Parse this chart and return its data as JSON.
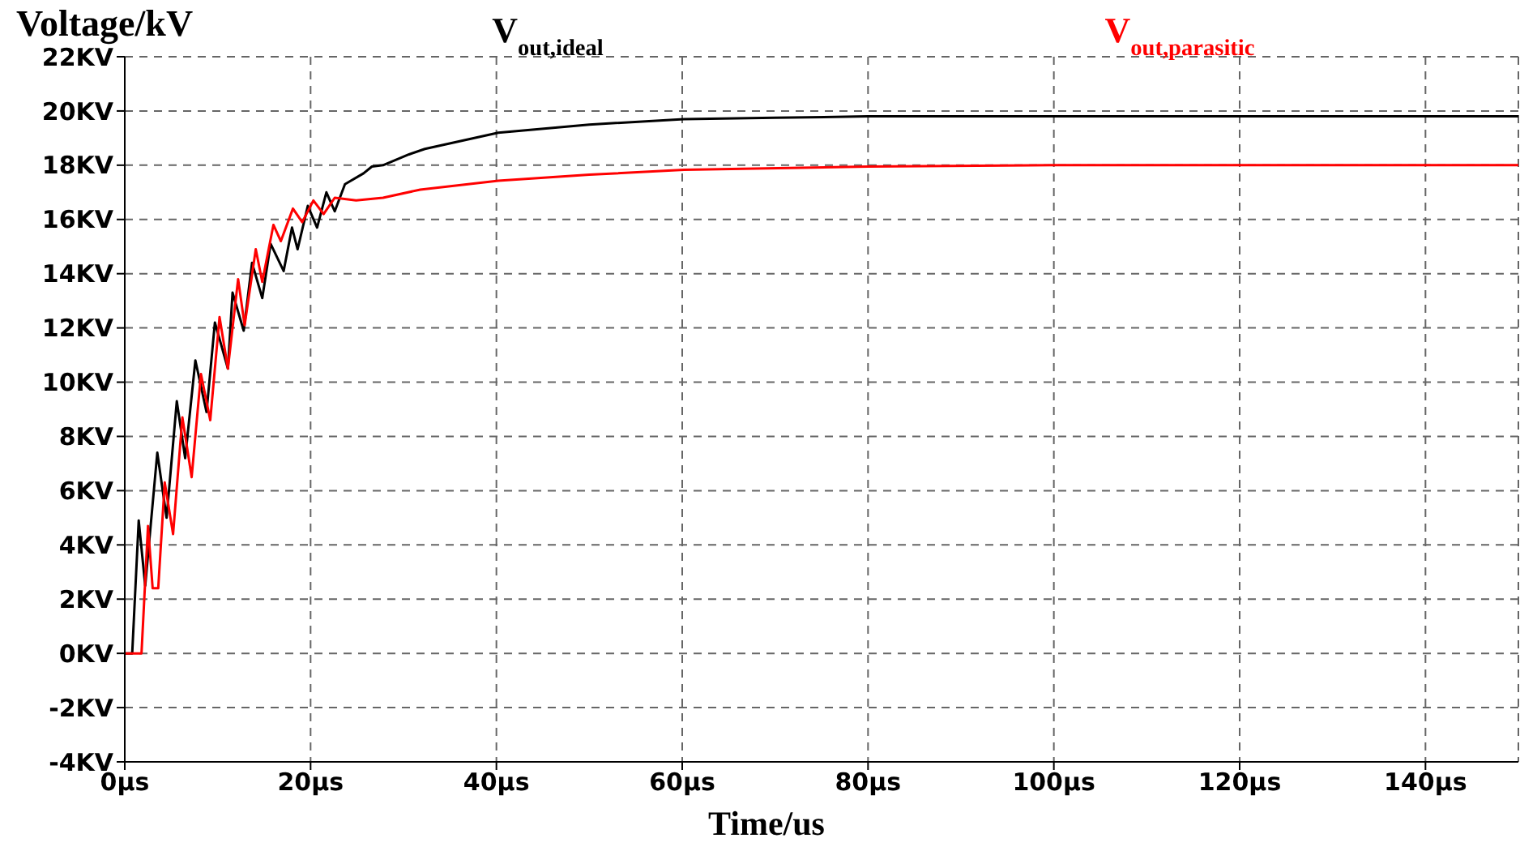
{
  "chart_data": {
    "type": "line",
    "ylabel": "Voltage/kV",
    "xlabel": "Time/us",
    "xlim": [
      0,
      150
    ],
    "ylim": [
      -4,
      22
    ],
    "xticks": [
      {
        "value": 0,
        "label": "0µs"
      },
      {
        "value": 20,
        "label": "20µs"
      },
      {
        "value": 40,
        "label": "40µs"
      },
      {
        "value": 60,
        "label": "60µs"
      },
      {
        "value": 80,
        "label": "80µs"
      },
      {
        "value": 100,
        "label": "100µs"
      },
      {
        "value": 120,
        "label": "120µs"
      },
      {
        "value": 140,
        "label": "140µs"
      }
    ],
    "yticks": [
      {
        "value": -4,
        "label": "-4KV"
      },
      {
        "value": -2,
        "label": "-2KV"
      },
      {
        "value": 0,
        "label": "0KV"
      },
      {
        "value": 2,
        "label": "2KV"
      },
      {
        "value": 4,
        "label": "4KV"
      },
      {
        "value": 6,
        "label": "6KV"
      },
      {
        "value": 8,
        "label": "8KV"
      },
      {
        "value": 10,
        "label": "10KV"
      },
      {
        "value": 12,
        "label": "12KV"
      },
      {
        "value": 14,
        "label": "14KV"
      },
      {
        "value": 16,
        "label": "16KV"
      },
      {
        "value": 18,
        "label": "18KV"
      },
      {
        "value": 20,
        "label": "20KV"
      },
      {
        "value": 22,
        "label": "22KV"
      }
    ],
    "grid": true,
    "legend": "top",
    "marker": "none",
    "line_style": "solid",
    "series": [
      {
        "name": "V$_{out,ideal}$",
        "color": "#000000",
        "x": [
          0,
          0.8,
          1.5,
          2.2,
          3.5,
          4.5,
          5.6,
          6.5,
          7.6,
          8.8,
          9.7,
          11.1,
          11.6,
          12.8,
          13.7,
          14.8,
          15.7,
          17.1,
          18,
          18.6,
          19.7,
          20.7,
          21.7,
          22.6,
          23.7,
          25.7,
          26.6,
          27.8,
          30.6,
          32.3,
          40.2,
          50,
          60.2,
          70,
          80,
          100,
          120,
          150
        ],
        "values": [
          0,
          0,
          4.9,
          2.5,
          7.4,
          5,
          9.3,
          7.2,
          10.8,
          8.9,
          12.2,
          10.5,
          13.3,
          11.9,
          14.4,
          13.1,
          15.1,
          14.1,
          15.7,
          14.9,
          16.5,
          15.7,
          17,
          16.3,
          17.3,
          17.7,
          17.95,
          18,
          18.4,
          18.6,
          19.2,
          19.5,
          19.7,
          19.75,
          19.8,
          19.8,
          19.8,
          19.8
        ]
      },
      {
        "name": "V$_{out,parasitic}$",
        "color": "#ff0000",
        "x": [
          0,
          1.8,
          2.5,
          3,
          3.6,
          4.3,
          5.2,
          6.2,
          7.2,
          8.2,
          9.2,
          10.2,
          11.1,
          12.2,
          12.9,
          14.1,
          14.8,
          16,
          16.8,
          18.1,
          19.1,
          20.3,
          21.4,
          22.6,
          24.9,
          27.8,
          31.8,
          40.2,
          50,
          60.2,
          80,
          100,
          120,
          150
        ],
        "values": [
          0,
          0,
          4.7,
          2.4,
          2.4,
          6.3,
          4.4,
          8.7,
          6.5,
          10.3,
          8.6,
          12.4,
          10.5,
          13.8,
          12.1,
          14.9,
          13.7,
          15.8,
          15.2,
          16.4,
          15.9,
          16.7,
          16.2,
          16.8,
          16.7,
          16.8,
          17.1,
          17.43,
          17.65,
          17.83,
          17.95,
          18,
          18,
          18
        ]
      }
    ]
  }
}
